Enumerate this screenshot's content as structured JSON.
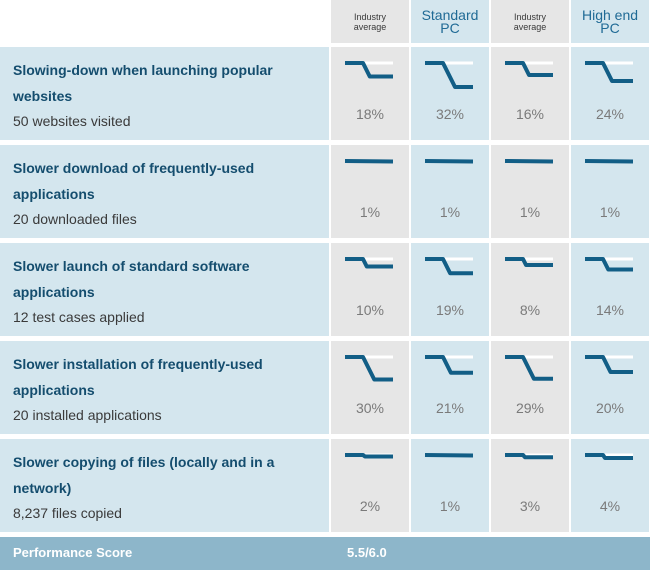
{
  "columns": [
    {
      "line1": "Industry",
      "line2": "average",
      "size": "small",
      "tone": "a"
    },
    {
      "line1": "Standard",
      "line2": "PC",
      "size": "big",
      "tone": "b"
    },
    {
      "line1": "Industry",
      "line2": "average",
      "size": "small",
      "tone": "a"
    },
    {
      "line1": "High end",
      "line2": "PC",
      "size": "big",
      "tone": "b"
    }
  ],
  "rows": [
    {
      "title_1": "Slowing-down when launching popular",
      "title_2": "websites",
      "sub": "50 websites visited",
      "pct": [
        "18%",
        "32%",
        "16%",
        "24%"
      ]
    },
    {
      "title_1": "Slower download of frequently-used",
      "title_2": "applications",
      "sub": "20 downloaded files",
      "pct": [
        "1%",
        "1%",
        "1%",
        "1%"
      ]
    },
    {
      "title_1": "Slower launch of standard software",
      "title_2": "applications",
      "sub": "12 test cases applied",
      "pct": [
        "10%",
        "19%",
        "8%",
        "14%"
      ]
    },
    {
      "title_1": "Slower installation of frequently-used",
      "title_2": "applications",
      "sub": "20 installed applications",
      "pct": [
        "30%",
        "21%",
        "29%",
        "20%"
      ]
    },
    {
      "title_1": "Slower copying of files (locally and in a",
      "title_2": "network)",
      "sub": "8,237 files copied",
      "pct": [
        "2%",
        "1%",
        "3%",
        "4%"
      ]
    }
  ],
  "footer": {
    "label": "Performance Score",
    "score": "5.5/6.0"
  },
  "chart_data": {
    "type": "table",
    "columns": [
      "Industry average",
      "Standard PC",
      "Industry average",
      "High end PC"
    ],
    "rows": [
      {
        "name": "Slowing-down when launching popular websites",
        "detail": "50 websites visited",
        "values": [
          18,
          32,
          16,
          24
        ]
      },
      {
        "name": "Slower download of frequently-used applications",
        "detail": "20 downloaded files",
        "values": [
          1,
          1,
          1,
          1
        ]
      },
      {
        "name": "Slower launch of standard software applications",
        "detail": "12 test cases applied",
        "values": [
          10,
          19,
          8,
          14
        ]
      },
      {
        "name": "Slower installation of frequently-used applications",
        "detail": "20 installed applications",
        "values": [
          30,
          21,
          29,
          20
        ]
      },
      {
        "name": "Slower copying of files (locally and in a network)",
        "detail": "8,237 files copied",
        "values": [
          2,
          1,
          3,
          4
        ]
      }
    ],
    "unit": "%"
  },
  "colors": {
    "line": "#125e86",
    "ref": "#ffffff"
  }
}
